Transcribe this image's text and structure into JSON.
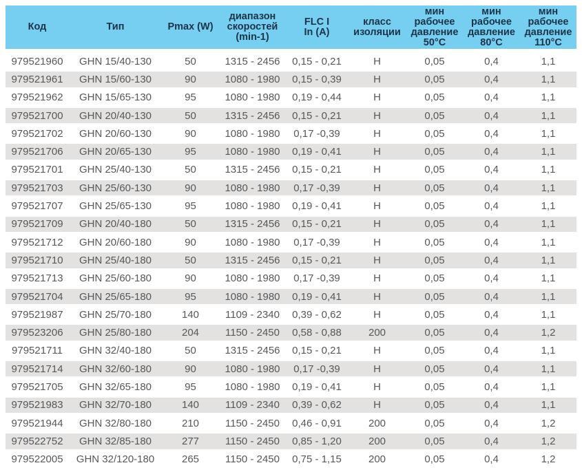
{
  "colors": {
    "header_bg": "#76CFF1",
    "header_text": "#1A3348",
    "stripe": "#E3E2E0",
    "row_text": "#565759",
    "page_bg": "#FFFFFF"
  },
  "table": {
    "columns": [
      {
        "key": "code",
        "label": "Код"
      },
      {
        "key": "type",
        "label": "Тип"
      },
      {
        "key": "pmax",
        "label": "Pmax (W)"
      },
      {
        "key": "speed",
        "label": "диапазон\nскоростей\n(min-1)"
      },
      {
        "key": "flc",
        "label": "FLC I\nIn (A)"
      },
      {
        "key": "insulation",
        "label": "класс\nизоляции"
      },
      {
        "key": "p50",
        "label": "мин\nрабочее\nдавление\n50°C"
      },
      {
        "key": "p80",
        "label": "мин\nрабочее\nдавление\n80°C"
      },
      {
        "key": "p110",
        "label": "мин\nрабочее\nдавление\n110°C"
      }
    ],
    "rows": [
      [
        "979521960",
        "GHN 15/40-130",
        "50",
        "1315 - 2456",
        "0,15 - 0,21",
        "H",
        "0,05",
        "0,4",
        "1,1"
      ],
      [
        "979521961",
        "GHN 15/60-130",
        "90",
        "1080 - 1980",
        "0,15 - 0,39",
        "H",
        "0,05",
        "0,4",
        "1,1"
      ],
      [
        "979521962",
        "GHN 15/65-130",
        "95",
        "1080 - 1980",
        "0,19 - 0,44",
        "H",
        "0,05",
        "0,4",
        "1,1"
      ],
      [
        "979521700",
        "GHN 20/40-130",
        "50",
        "1315 - 2456",
        "0,15 - 0,21",
        "H",
        "0,05",
        "0,4",
        "1,1"
      ],
      [
        "979521702",
        "GHN 20/60-130",
        "90",
        "1080 - 1980",
        "0,17 -0,39",
        "H",
        "0,05",
        "0,4",
        "1,1"
      ],
      [
        "979521706",
        "GHN 20/65-130",
        "95",
        "1080 - 1980",
        "0,19 - 0,41",
        "H",
        "0,05",
        "0,4",
        "1,1"
      ],
      [
        "979521701",
        "GHN 25/40-130",
        "50",
        "1315 - 2456",
        "0,15 - 0,21",
        "H",
        "0,05",
        "0,4",
        "1,1"
      ],
      [
        "979521703",
        "GHN 25/60-130",
        "90",
        "1080 - 1980",
        "0,17 -0,39",
        "H",
        "0,05",
        "0,4",
        "1,1"
      ],
      [
        "979521707",
        "GHN 25/65-130",
        "95",
        "1080 - 1980",
        "0,19 - 0,41",
        "H",
        "0,05",
        "0,4",
        "1,1"
      ],
      [
        "979521709",
        "GHN 20/40-180",
        "50",
        "1315 - 2456",
        "0,15 - 0,21",
        "H",
        "0,05",
        "0,4",
        "1,1"
      ],
      [
        "979521712",
        "GHN 20/60-180",
        "90",
        "1080 - 1980",
        "0,17 -0,39",
        "H",
        "0,05",
        "0,4",
        "1,1"
      ],
      [
        "979521710",
        "GHN 25/40-180",
        "50",
        "1315 - 2456",
        "0,15 - 0,21",
        "H",
        "0,05",
        "0,4",
        "1,1"
      ],
      [
        "979521713",
        "GHN 25/60-180",
        "90",
        "1080 - 1980",
        "0,17 -0,39",
        "H",
        "0,05",
        "0,4",
        "1,1"
      ],
      [
        "979521704",
        "GHN 25/65-180",
        "95",
        "1080 - 1980",
        "0,19 - 0,41",
        "H",
        "0,05",
        "0,4",
        "1,1"
      ],
      [
        "979521987",
        "GHN 25/70-180",
        "140",
        "1109 - 2340",
        "0,39 - 0,62",
        "H",
        "0,05",
        "0,4",
        "1,1"
      ],
      [
        "979523206",
        "GHN 25/80-180",
        "204",
        "1150 - 2450",
        "0,58 - 0,88",
        "200",
        "0,05",
        "0,4",
        "1,2"
      ],
      [
        "979521711",
        "GHN 32/40-180",
        "50",
        "1315 - 2456",
        "0,15 - 0,21",
        "H",
        "0,05",
        "0,4",
        "1,1"
      ],
      [
        "979521714",
        "GHN 32/60-180",
        "90",
        "1080 - 1980",
        "0,17 -0,39",
        "H",
        "0,05",
        "0,4",
        "1,1"
      ],
      [
        "979521705",
        "GHN 32/65-180",
        "95",
        "1080 - 1980",
        "0,19 - 0,41",
        "H",
        "0,05",
        "0,4",
        "1,1"
      ],
      [
        "979521983",
        "GHN 32/70-180",
        "140",
        "1109 - 2340",
        "0,39 - 0,62",
        "H",
        "0,05",
        "0,4",
        "1,1"
      ],
      [
        "979521944",
        "GHN 32/80-180",
        "210",
        "1150 - 2450",
        "0,46 - 0,91",
        "200",
        "0,05",
        "0,4",
        "1,2"
      ],
      [
        "979522752",
        "GHN 32/85-180",
        "277",
        "1150 - 2450",
        "0,85 - 1,20",
        "200",
        "0,05",
        "0,4",
        "1,2"
      ],
      [
        "979522005",
        "GHN 32/120-180",
        "265",
        "1150 - 2450",
        "0,75 - 1,15",
        "200",
        "0,05",
        "0,4",
        "1,2"
      ]
    ]
  }
}
